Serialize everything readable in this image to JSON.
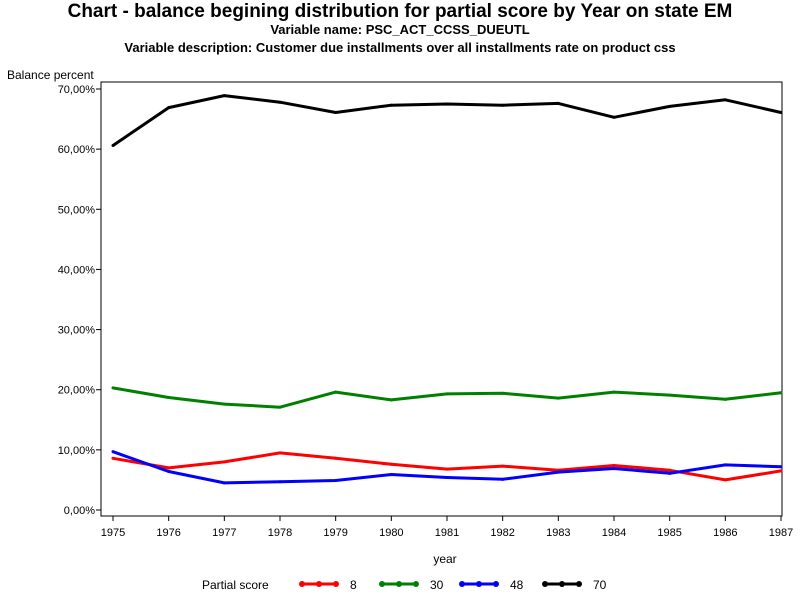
{
  "chart_data": {
    "type": "line",
    "title": "Chart - balance begining distribution for partial score by Year on state EM",
    "subtitle": "Variable name: PSC_ACT_CCSS_DUEUTL",
    "subtitle2": "Variable description: Customer due installments over all installments rate on product css",
    "ylabel": "Balance percent",
    "xlabel": "year",
    "ylim": [
      0,
      70
    ],
    "yticks": [
      "0,00%",
      "10,00%",
      "20,00%",
      "30,00%",
      "40,00%",
      "50,00%",
      "60,00%",
      "70,00%"
    ],
    "x": [
      "1975",
      "1976",
      "1977",
      "1978",
      "1979",
      "1980",
      "1981",
      "1982",
      "1983",
      "1984",
      "1985",
      "1986",
      "1987"
    ],
    "legend_title": "Partial score",
    "legend_position": "bottom",
    "grid": false,
    "series": [
      {
        "name": "8",
        "color": "#ff0000",
        "values": [
          8.6,
          7.0,
          8.0,
          9.5,
          8.6,
          7.6,
          6.8,
          7.3,
          6.6,
          7.4,
          6.6,
          5.0,
          6.5
        ]
      },
      {
        "name": "30",
        "color": "#008000",
        "values": [
          20.3,
          18.7,
          17.6,
          17.1,
          19.6,
          18.3,
          19.3,
          19.4,
          18.6,
          19.6,
          19.1,
          18.4,
          19.5
        ]
      },
      {
        "name": "48",
        "color": "#0000ff",
        "values": [
          9.7,
          6.4,
          4.5,
          4.7,
          4.9,
          5.9,
          5.4,
          5.1,
          6.3,
          6.9,
          6.1,
          7.5,
          7.2
        ]
      },
      {
        "name": "70",
        "color": "#000000",
        "values": [
          60.6,
          66.9,
          68.9,
          67.8,
          66.1,
          67.3,
          67.5,
          67.3,
          67.6,
          65.3,
          67.1,
          68.2,
          66.1
        ]
      }
    ]
  }
}
